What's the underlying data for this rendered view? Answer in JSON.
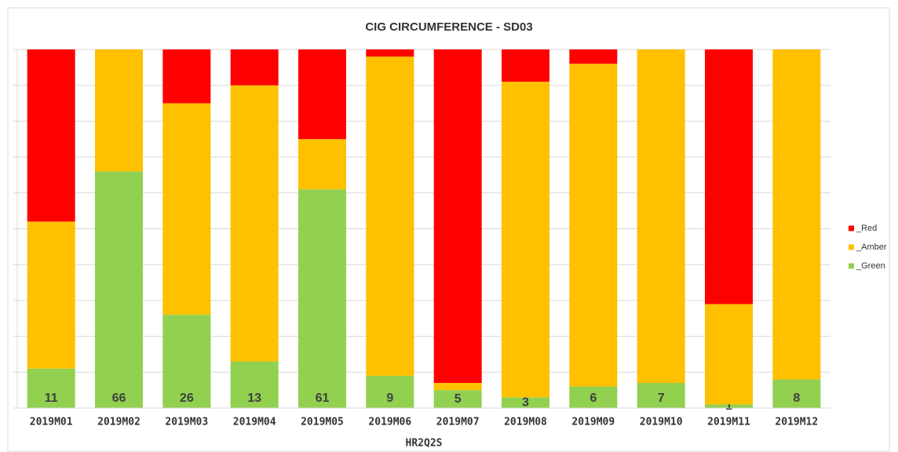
{
  "chart_data": {
    "type": "stacked_bar_percent",
    "title": "CIG CIRCUMFERENCE - SD03",
    "x_label": "HR2Q2S",
    "categories": [
      "2019M01",
      "2019M02",
      "2019M03",
      "2019M04",
      "2019M05",
      "2019M06",
      "2019M07",
      "2019M08",
      "2019M09",
      "2019M10",
      "2019M11",
      "2019M12"
    ],
    "series": [
      {
        "name": "_Red",
        "color": "#ff0000",
        "values": [
          48,
          0,
          15,
          10,
          25,
          2,
          93,
          9,
          4,
          0,
          71,
          0
        ]
      },
      {
        "name": "_Amber",
        "color": "#ffc000",
        "values": [
          41,
          34,
          59,
          77,
          14,
          89,
          2,
          88,
          90,
          93,
          28,
          92
        ]
      },
      {
        "name": "_Green",
        "color": "#92d050",
        "values": [
          11,
          66,
          26,
          13,
          61,
          9,
          5,
          3,
          6,
          7,
          1,
          8
        ]
      }
    ],
    "labeled_series": "_Green",
    "ylim": [
      0,
      100
    ],
    "yticks": [
      0,
      10,
      20,
      30,
      40,
      50,
      60,
      70,
      80,
      90,
      100
    ],
    "grid": true,
    "legend": "right"
  }
}
